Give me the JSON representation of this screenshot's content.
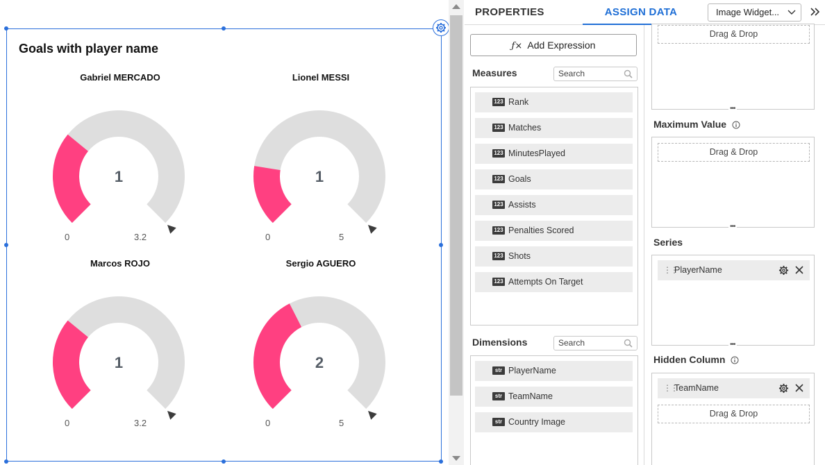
{
  "widget": {
    "title": "Goals with player name",
    "settings_icon": "gear-icon",
    "gauges": [
      {
        "name": "Gabriel MERCADO",
        "value": 1,
        "value_label": "1",
        "min": 0,
        "max": 3.2,
        "min_label": "0",
        "max_label": "3.2"
      },
      {
        "name": "Lionel MESSI",
        "value": 1,
        "value_label": "1",
        "min": 0,
        "max": 5,
        "min_label": "0",
        "max_label": "5"
      },
      {
        "name": "Marcos ROJO",
        "value": 1,
        "value_label": "1",
        "min": 0,
        "max": 3.2,
        "min_label": "0",
        "max_label": "3.2"
      },
      {
        "name": "Sergio AGUERO",
        "value": 2,
        "value_label": "2",
        "min": 0,
        "max": 5,
        "min_label": "0",
        "max_label": "5"
      }
    ],
    "colors": {
      "fill": "#ff4081",
      "track": "#dedede",
      "pointer": "#3c3c3c"
    }
  },
  "panel": {
    "tabs": {
      "properties": "PROPERTIES",
      "assign": "ASSIGN DATA"
    },
    "widget_select": "Image Widget...",
    "expand_icon": "double-chevron-right-icon",
    "add_expression": "Add Expression",
    "measures": {
      "title": "Measures",
      "search_placeholder": "Search",
      "badge": "123",
      "items": [
        "Rank",
        "Matches",
        "MinutesPlayed",
        "Goals",
        "Assists",
        "Penalties Scored",
        "Shots",
        "Attempts On Target"
      ]
    },
    "dimensions": {
      "title": "Dimensions",
      "search_placeholder": "Search",
      "badge": "str",
      "items": [
        "PlayerName",
        "TeamName",
        "Country Image"
      ]
    },
    "drop_zones": {
      "top": {
        "drag_drop": "Drag & Drop"
      },
      "maximum_value": {
        "title": "Maximum Value",
        "drag_drop": "Drag & Drop"
      },
      "series": {
        "title": "Series",
        "chip": "PlayerName"
      },
      "hidden_column": {
        "title": "Hidden Column",
        "chip": "TeamName",
        "drag_drop": "Drag & Drop"
      }
    },
    "accent_color": "#1f6fd6"
  }
}
